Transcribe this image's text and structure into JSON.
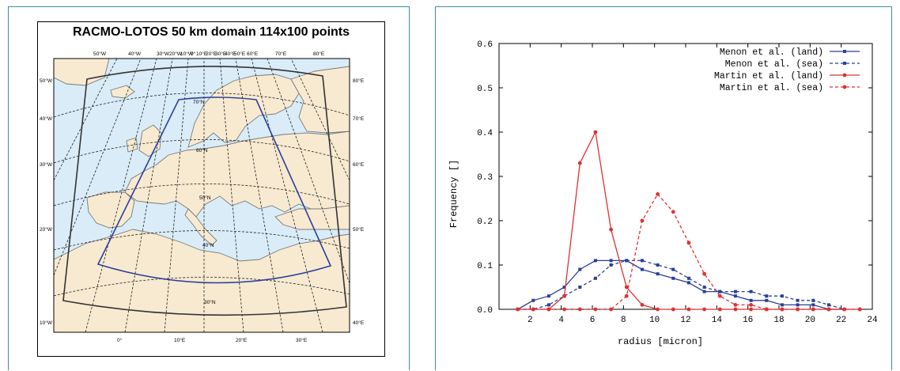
{
  "map": {
    "title": "RACMO-LOTOS 50 km domain 114x100 points",
    "top_lon_labels": [
      "50°W",
      "40°W",
      "30°W",
      "20°W",
      "10°W",
      "0°",
      "10°E",
      "20°E",
      "30°E",
      "40°E",
      "50°E",
      "60°E",
      "70°E",
      "80°E"
    ],
    "bottom_lon_labels": [
      "0°",
      "10°E",
      "20°E",
      "30°E"
    ],
    "left_labels": [
      "50°W",
      "40°W",
      "30°W",
      "20°W",
      "10°W"
    ],
    "right_labels": [
      "80°E",
      "70°E",
      "60°E",
      "50°E",
      "40°E"
    ],
    "lat_labels": [
      "70°N",
      "60°N",
      "50°N",
      "40°N",
      "30°N"
    ],
    "colors": {
      "sea": "#d9ecf7",
      "land": "#f7ead0",
      "coast": "#7a7a7a",
      "inner_domain": "#2a3f9a",
      "outer_domain": "#333333"
    }
  },
  "chart_data": {
    "type": "line",
    "title": "",
    "xlabel": "radius [micron]",
    "ylabel": "Frequency []",
    "xlim": [
      0,
      24
    ],
    "ylim": [
      0,
      0.6
    ],
    "xticks": [
      2,
      4,
      6,
      8,
      10,
      12,
      14,
      16,
      18,
      20,
      22,
      24
    ],
    "yticks": [
      0.0,
      0.1,
      0.2,
      0.3,
      0.4,
      0.5,
      0.6
    ],
    "xtick_labels": [
      "2",
      "4",
      "6",
      "8",
      "10",
      "12",
      "14",
      "16",
      "18",
      "20",
      "22",
      "24"
    ],
    "ytick_labels": [
      "0.0",
      "0.1",
      "0.2",
      "0.3",
      "0.4",
      "0.5",
      "0.6"
    ],
    "legend_position": "top-right",
    "series": [
      {
        "name": "Menon et al. (land)",
        "color": "#2a3f9a",
        "dash": false,
        "marker": "square",
        "x": [
          1.2,
          2.2,
          3.2,
          4.2,
          5.2,
          6.2,
          7.2,
          8.2,
          9.2,
          10.2,
          11.2,
          12.2,
          13.2,
          14.2,
          15.2,
          16.2,
          17.2,
          18.2,
          19.2,
          20.2,
          21.2,
          22.2
        ],
        "y": [
          0.0,
          0.02,
          0.03,
          0.05,
          0.09,
          0.11,
          0.11,
          0.11,
          0.09,
          0.08,
          0.07,
          0.06,
          0.04,
          0.04,
          0.03,
          0.02,
          0.02,
          0.01,
          0.01,
          0.01,
          0.0,
          0.0
        ]
      },
      {
        "name": "Menon et al. (sea)",
        "color": "#2a3f9a",
        "dash": true,
        "marker": "square",
        "x": [
          1.2,
          2.2,
          3.2,
          4.2,
          5.2,
          6.2,
          7.2,
          8.2,
          9.2,
          10.2,
          11.2,
          12.2,
          13.2,
          14.2,
          15.2,
          16.2,
          17.2,
          18.2,
          19.2,
          20.2,
          21.2,
          22.2
        ],
        "y": [
          0.0,
          0.0,
          0.01,
          0.03,
          0.05,
          0.07,
          0.1,
          0.11,
          0.11,
          0.1,
          0.09,
          0.07,
          0.05,
          0.04,
          0.04,
          0.04,
          0.03,
          0.03,
          0.02,
          0.02,
          0.01,
          0.0
        ]
      },
      {
        "name": "Martin et al. (land)",
        "color": "#e03030",
        "dash": false,
        "marker": "circle",
        "x": [
          1.2,
          2.2,
          3.2,
          4.2,
          5.2,
          6.2,
          7.2,
          8.2,
          9.2,
          10.2,
          11.2,
          12.2,
          13.2,
          14.2,
          15.2,
          16.2,
          17.2,
          18.2,
          19.2,
          20.2,
          21.2,
          22.2,
          23.2
        ],
        "y": [
          0.0,
          0.0,
          0.0,
          0.03,
          0.33,
          0.4,
          0.18,
          0.05,
          0.01,
          0.0,
          0.0,
          0.0,
          0.0,
          0.0,
          0.0,
          0.0,
          0.0,
          0.0,
          0.0,
          0.0,
          0.0,
          0.0,
          0.0
        ]
      },
      {
        "name": "Martin et al. (sea)",
        "color": "#e03030",
        "dash": true,
        "marker": "circle",
        "x": [
          1.2,
          2.2,
          3.2,
          4.2,
          5.2,
          6.2,
          7.2,
          8.2,
          9.2,
          10.2,
          11.2,
          12.2,
          13.2,
          14.2,
          15.2,
          16.2,
          17.2,
          18.2,
          19.2,
          20.2,
          21.2,
          22.2,
          23.2
        ],
        "y": [
          0.0,
          0.0,
          0.0,
          0.0,
          0.0,
          0.0,
          0.0,
          0.03,
          0.2,
          0.26,
          0.22,
          0.15,
          0.08,
          0.03,
          0.01,
          0.01,
          0.0,
          0.0,
          0.0,
          0.0,
          0.0,
          0.0,
          0.0
        ]
      }
    ]
  }
}
